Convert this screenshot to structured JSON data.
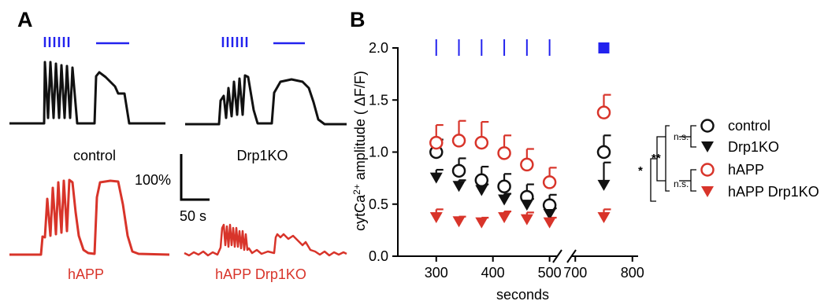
{
  "panel_a": {
    "letter": "A",
    "trace_labels": [
      "control",
      "Drp1KO",
      "hAPP",
      "hAPP Drp1KO"
    ],
    "scale_bar": {
      "vertical_label": "100%",
      "horizontal_label": "50 s"
    },
    "colors": {
      "black": "#111111",
      "red": "#d8342a",
      "stim": "#2222ee"
    }
  },
  "panel_b": {
    "letter": "B",
    "significance": [
      "n.s.",
      "**",
      "*",
      "n.s."
    ]
  },
  "chart_data": {
    "type": "scatter",
    "ylabel": "cytCa2+ amplitude ( ΔF/F)",
    "ylabel_parts": {
      "pre": "cytCa",
      "sup": "2+",
      "post": " amplitude ( ΔF/F)"
    },
    "xlabel": "seconds",
    "xlim_segments": [
      [
        260,
        520
      ],
      [
        690,
        810
      ]
    ],
    "ylim": [
      0.0,
      2.0
    ],
    "xticks": [
      300,
      400,
      500,
      700,
      800
    ],
    "yticks": [
      "0.0",
      "0.5",
      "1.0",
      "1.5",
      "2.0"
    ],
    "stim_marks_x": [
      300,
      340,
      380,
      420,
      460,
      500
    ],
    "stim_block_x": 750,
    "series": [
      {
        "name": "control",
        "color": "#111111",
        "marker": "circle-open",
        "x": [
          300,
          340,
          380,
          420,
          460,
          500,
          750
        ],
        "y": [
          1.0,
          0.82,
          0.73,
          0.67,
          0.57,
          0.49,
          1.0
        ],
        "err": [
          0.12,
          0.12,
          0.13,
          0.12,
          0.12,
          0.1,
          0.16
        ]
      },
      {
        "name": "Drp1KO",
        "color": "#111111",
        "marker": "triangle-down",
        "x": [
          300,
          340,
          380,
          420,
          460,
          500,
          750
        ],
        "y": [
          0.75,
          0.67,
          0.63,
          0.54,
          0.49,
          0.4,
          0.68
        ],
        "err": [
          0.08,
          0.06,
          0.06,
          0.06,
          0.06,
          0.06,
          0.22
        ]
      },
      {
        "name": "hAPP",
        "color": "#d8342a",
        "marker": "circle-open",
        "x": [
          300,
          340,
          380,
          420,
          460,
          500,
          750
        ],
        "y": [
          1.09,
          1.11,
          1.09,
          0.99,
          0.88,
          0.71,
          1.38
        ],
        "err": [
          0.17,
          0.19,
          0.2,
          0.17,
          0.15,
          0.14,
          0.17
        ]
      },
      {
        "name": "hAPP Drp1KO",
        "color": "#d8342a",
        "marker": "triangle-down",
        "x": [
          300,
          340,
          380,
          420,
          460,
          500,
          750
        ],
        "y": [
          0.37,
          0.33,
          0.32,
          0.37,
          0.35,
          0.32,
          0.37
        ],
        "err": [
          0.08,
          0.05,
          0.05,
          0.06,
          0.07,
          0.05,
          0.08
        ]
      }
    ]
  }
}
